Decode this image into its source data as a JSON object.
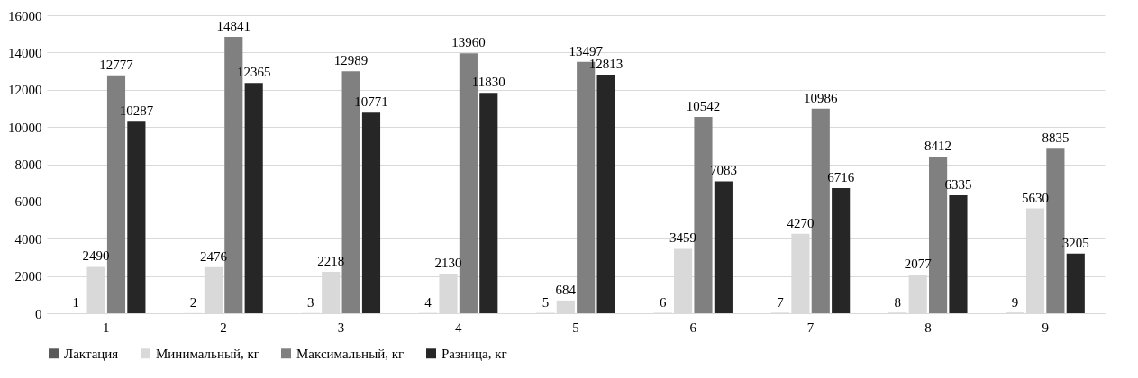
{
  "chart_data": {
    "type": "bar",
    "categories": [
      "1",
      "2",
      "3",
      "4",
      "5",
      "6",
      "7",
      "8",
      "9"
    ],
    "series": [
      {
        "name": "Лактация",
        "color": "#595959",
        "values": [
          1,
          2,
          3,
          4,
          5,
          6,
          7,
          8,
          9
        ]
      },
      {
        "name": "Минимальный, кг",
        "color": "#d9d9d9",
        "values": [
          2490,
          2476,
          2218,
          2130,
          684,
          3459,
          4270,
          2077,
          5630
        ]
      },
      {
        "name": "Максимальный, кг",
        "color": "#808080",
        "values": [
          12777,
          14841,
          12989,
          13960,
          13497,
          10542,
          10986,
          8412,
          8835
        ]
      },
      {
        "name": "Разница, кг",
        "color": "#262626",
        "values": [
          10287,
          12365,
          10771,
          11830,
          12813,
          7083,
          6716,
          6335,
          3205
        ]
      }
    ],
    "ylim": [
      0,
      16000
    ],
    "yticks": [
      0,
      2000,
      4000,
      6000,
      8000,
      10000,
      12000,
      14000,
      16000
    ],
    "grid": "y",
    "legend": "bottom",
    "data_labels": true
  }
}
